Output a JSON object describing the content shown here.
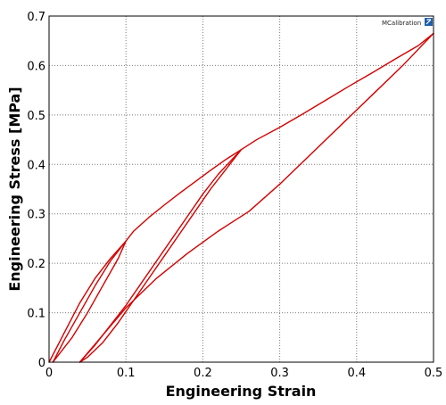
{
  "chart_data": {
    "type": "line",
    "xlabel": "Engineering Strain",
    "ylabel": "Engineering Stress [MPa]",
    "xlim": [
      0,
      0.5
    ],
    "ylim": [
      0,
      0.7
    ],
    "xticks": [
      0,
      0.1,
      0.2,
      0.3,
      0.4,
      0.5
    ],
    "yticks": [
      0,
      0.1,
      0.2,
      0.3,
      0.4,
      0.5,
      0.6,
      0.7
    ],
    "xtick_labels": [
      "0",
      "0.1",
      "0.2",
      "0.3",
      "0.4",
      "0.5"
    ],
    "ytick_labels": [
      "0",
      "0.1",
      "0.2",
      "0.3",
      "0.4",
      "0.5",
      "0.6",
      "0.7"
    ],
    "grid": true,
    "line_color": "#d40000",
    "series": [
      {
        "x": [
          0.0,
          0.02,
          0.04,
          0.06,
          0.08,
          0.1,
          0.11,
          0.13,
          0.15,
          0.17,
          0.19,
          0.21,
          0.23,
          0.25,
          0.27,
          0.3,
          0.33,
          0.36,
          0.39,
          0.42,
          0.45,
          0.48,
          0.5
        ],
        "y": [
          0.0,
          0.06,
          0.12,
          0.17,
          0.21,
          0.245,
          0.265,
          0.293,
          0.318,
          0.342,
          0.365,
          0.388,
          0.41,
          0.43,
          0.45,
          0.475,
          0.502,
          0.53,
          0.558,
          0.585,
          0.613,
          0.64,
          0.665
        ]
      },
      {
        "x": [
          0.1,
          0.09,
          0.07,
          0.05,
          0.03,
          0.01,
          0.005
        ],
        "y": [
          0.245,
          0.21,
          0.155,
          0.1,
          0.05,
          0.01,
          0.0
        ]
      },
      {
        "x": [
          0.005,
          0.02,
          0.04,
          0.06,
          0.08,
          0.1
        ],
        "y": [
          0.0,
          0.045,
          0.1,
          0.155,
          0.205,
          0.245
        ]
      },
      {
        "x": [
          0.25,
          0.23,
          0.21,
          0.19,
          0.17,
          0.15,
          0.13,
          0.11,
          0.09,
          0.07,
          0.05,
          0.04
        ],
        "y": [
          0.43,
          0.39,
          0.35,
          0.305,
          0.26,
          0.215,
          0.17,
          0.125,
          0.08,
          0.04,
          0.01,
          0.0
        ]
      },
      {
        "x": [
          0.04,
          0.06,
          0.08,
          0.1,
          0.12,
          0.14,
          0.16,
          0.18,
          0.2,
          0.22,
          0.25
        ],
        "y": [
          0.0,
          0.035,
          0.075,
          0.115,
          0.16,
          0.205,
          0.25,
          0.295,
          0.34,
          0.38,
          0.43
        ]
      },
      {
        "x": [
          0.5,
          0.46,
          0.42,
          0.38,
          0.34,
          0.3,
          0.26,
          0.22,
          0.18,
          0.14,
          0.1,
          0.07,
          0.04
        ],
        "y": [
          0.665,
          0.6,
          0.54,
          0.48,
          0.42,
          0.36,
          0.305,
          0.265,
          0.22,
          0.17,
          0.11,
          0.055,
          0.0
        ]
      }
    ]
  },
  "logo": {
    "text": "MCalibration"
  }
}
